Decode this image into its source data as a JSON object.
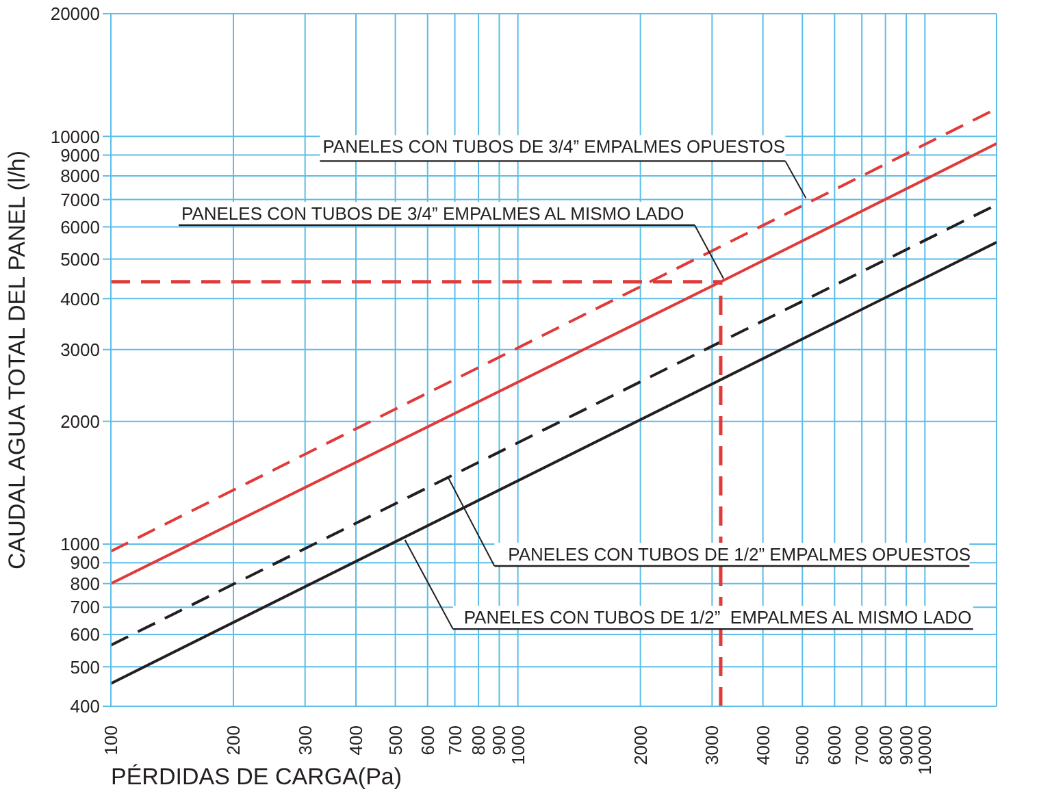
{
  "chart_data": {
    "type": "line",
    "xlabel": "PÉRDIDAS DE CARGA(Pa)",
    "ylabel": "CAUDAL AGUA TOTAL DEL PANEL (l/h)",
    "log": "xy",
    "grid": true,
    "legend": false,
    "marker": "none",
    "xlim": [
      100,
      15000
    ],
    "ylim": [
      400,
      20000
    ],
    "xticks": [
      100,
      200,
      300,
      400,
      500,
      600,
      700,
      800,
      900,
      1000,
      2000,
      3000,
      4000,
      5000,
      6000,
      7000,
      8000,
      9000,
      10000
    ],
    "yticks": [
      400,
      500,
      600,
      700,
      800,
      900,
      1000,
      2000,
      3000,
      4000,
      5000,
      6000,
      7000,
      8000,
      9000,
      10000,
      20000
    ],
    "series": [
      {
        "color": "#e03a3a",
        "line_style": "dashed",
        "x": [
          100,
          15000
        ],
        "values": [
          960,
          11700
        ]
      },
      {
        "color": "#e03a3a",
        "line_style": "solid",
        "x": [
          100,
          3150,
          15000
        ],
        "values": [
          800,
          4400,
          9600
        ]
      },
      {
        "color": "#231f20",
        "line_style": "dashed",
        "x": [
          100,
          15000
        ],
        "values": [
          565,
          6800
        ]
      },
      {
        "color": "#231f20",
        "line_style": "solid",
        "x": [
          100,
          15000
        ],
        "values": [
          455,
          5500
        ]
      }
    ],
    "ref_lines": [
      {
        "axis": "y",
        "value": 4400,
        "color": "#e03a3a",
        "line_style": "dashed"
      },
      {
        "axis": "x",
        "value": 3150,
        "color": "#e03a3a",
        "line_style": "dashed"
      }
    ],
    "annotations": [
      {
        "text": "PANELES CON TUBOS DE 3/4” EMPALMES OPUESTOS",
        "x": 5100,
        "y": 7060
      },
      {
        "text": "PANELES CON TUBOS DE 3/4” EMPALMES AL MISMO LADO",
        "x": 3200,
        "y": 4480
      },
      {
        "text": "PANELES CON TUBOS DE 1/2” EMPALMES OPUESTOS",
        "x": 673,
        "y": 1460
      },
      {
        "text": "PANELES CON TUBOS DE 1/2”  EMPALMES AL MISMO LADO",
        "x": 528,
        "y": 1023
      }
    ]
  }
}
